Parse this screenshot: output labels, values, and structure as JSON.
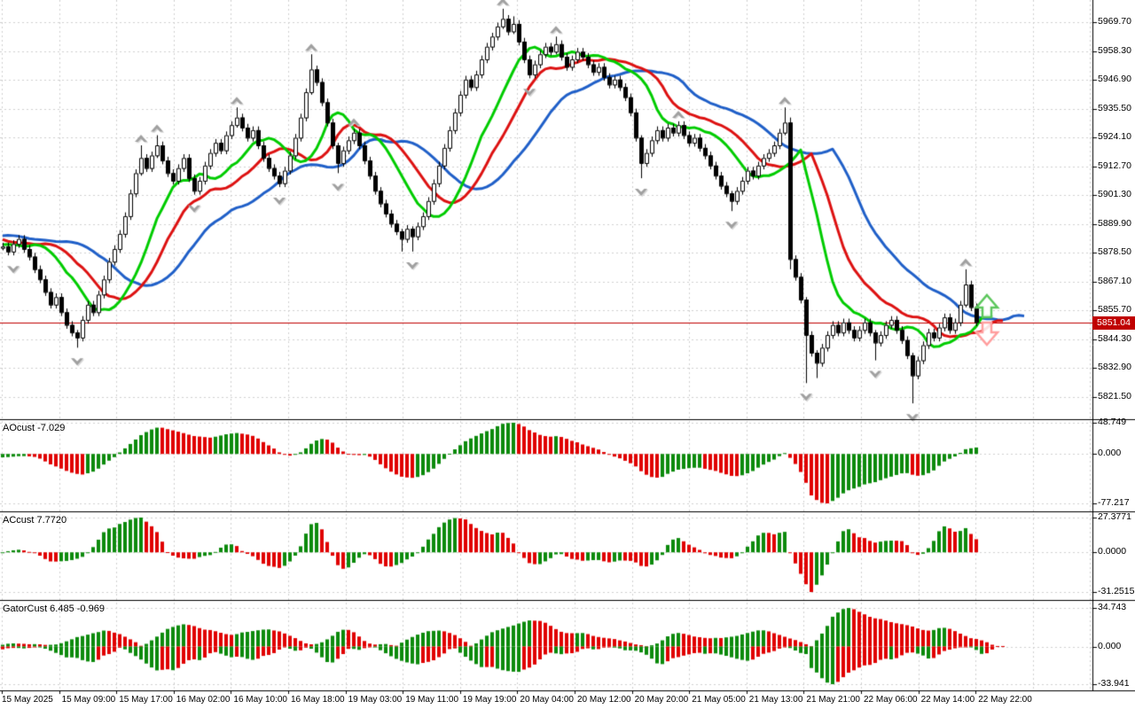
{
  "window": {
    "kind": "trading-terminal-chart",
    "timeframe": "H1"
  },
  "chart_data": {
    "type": "candlestick_with_indicators",
    "x_axis": {
      "labels": [
        "15 May 2025",
        "15 May 09:00",
        "15 May 17:00",
        "16 May 02:00",
        "16 May 10:00",
        "16 May 18:00",
        "19 May 03:00",
        "19 May 11:00",
        "19 May 19:00",
        "20 May 04:00",
        "20 May 12:00",
        "20 May 20:00",
        "21 May 05:00",
        "21 May 13:00",
        "21 May 21:00",
        "22 May 06:00",
        "22 May 14:00",
        "22 May 22:00"
      ]
    },
    "main_chart": {
      "y_axis_labels": [
        "5969.70",
        "5958.30",
        "5946.90",
        "5935.50",
        "5924.10",
        "5912.70",
        "5901.30",
        "5889.90",
        "5878.50",
        "5867.10",
        "5855.70",
        "5844.30",
        "5832.90",
        "5821.50"
      ],
      "y_axis_step": 11.4,
      "current_price": "5851.04",
      "closes_prehistory": [
        5890,
        5892,
        5895,
        5893,
        5890,
        5888,
        5885,
        5883,
        5886,
        5889,
        5891,
        5894,
        5896,
        5893,
        5889,
        5886,
        5883,
        5880,
        5878,
        5881,
        5884,
        5887,
        5890,
        5888,
        5885,
        5882,
        5879,
        5877,
        5880,
        5883,
        5886,
        5889,
        5887,
        5884,
        5882,
        5880,
        5878,
        5880,
        5882,
        5881
      ],
      "closes": [
        5881,
        5879,
        5882,
        5884,
        5880,
        5877,
        5872,
        5868,
        5863,
        5858,
        5861,
        5855,
        5850,
        5847,
        5845,
        5852,
        5858,
        5855,
        5862,
        5868,
        5875,
        5880,
        5886,
        5893,
        5902,
        5910,
        5916,
        5912,
        5917,
        5921,
        5915,
        5910,
        5907,
        5912,
        5916,
        5908,
        5903,
        5907,
        5913,
        5918,
        5922,
        5919,
        5925,
        5929,
        5932,
        5928,
        5924,
        5927,
        5921,
        5916,
        5912,
        5909,
        5906,
        5911,
        5917,
        5924,
        5932,
        5942,
        5951,
        5946,
        5938,
        5930,
        5921,
        5914,
        5919,
        5923,
        5926,
        5921,
        5915,
        5909,
        5903,
        5898,
        5894,
        5890,
        5887,
        5884,
        5888,
        5885,
        5889,
        5893,
        5899,
        5906,
        5913,
        5920,
        5927,
        5934,
        5941,
        5947,
        5944,
        5949,
        5955,
        5960,
        5964,
        5968,
        5971,
        5966,
        5969,
        5962,
        5955,
        5949,
        5953,
        5957,
        5960,
        5958,
        5961,
        5956,
        5952,
        5955,
        5958,
        5956,
        5953,
        5950,
        5952,
        5948,
        5945,
        5947,
        5944,
        5940,
        5934,
        5924,
        5914,
        5918,
        5923,
        5927,
        5924,
        5928,
        5926,
        5929,
        5925,
        5922,
        5924,
        5920,
        5917,
        5913,
        5909,
        5905,
        5902,
        5899,
        5903,
        5907,
        5911,
        5909,
        5913,
        5916,
        5918,
        5921,
        5926,
        5930,
        5876,
        5869,
        5860,
        5846,
        5839,
        5835,
        5841,
        5846,
        5850,
        5847,
        5851,
        5848,
        5845,
        5848,
        5851,
        5847,
        5843,
        5846,
        5850,
        5852,
        5848,
        5844,
        5838,
        5830,
        5836,
        5842,
        5847,
        5845,
        5849,
        5853,
        5848,
        5851,
        5858,
        5866,
        5857,
        5851.04
      ],
      "wick_overrides": {
        "14": [
          1,
          4
        ],
        "26": [
          5,
          1
        ],
        "29": [
          4,
          1
        ],
        "44": [
          4,
          1
        ],
        "58": [
          6,
          1
        ],
        "63": [
          1,
          4
        ],
        "75": [
          1,
          5
        ],
        "77": [
          1,
          6
        ],
        "94": [
          4,
          1
        ],
        "96": [
          3,
          1
        ],
        "104": [
          3,
          1
        ],
        "120": [
          1,
          6
        ],
        "137": [
          1,
          4
        ],
        "147": [
          6,
          1
        ],
        "148": [
          2,
          4
        ],
        "151": [
          1,
          19
        ],
        "153": [
          1,
          6
        ],
        "164": [
          1,
          7
        ],
        "171": [
          1,
          11
        ],
        "181": [
          6,
          1
        ]
      },
      "fractals_up": [
        26,
        29,
        44,
        58,
        66,
        94,
        104,
        127,
        147,
        181
      ],
      "fractals_down": [
        2,
        14,
        36,
        52,
        63,
        77,
        99,
        120,
        137,
        151,
        164,
        171
      ],
      "alligator": {
        "lips": {
          "period": 5,
          "shift": 3,
          "color": "#00cc00"
        },
        "teeth": {
          "period": 8,
          "shift": 5,
          "color": "#dd1111"
        },
        "jaw": {
          "period": 13,
          "shift": 9,
          "color": "#1f5fc8"
        }
      },
      "signal_arrows": {
        "up_color": "#5cc75c",
        "down_color": "#ff9e9e"
      }
    },
    "indicator_panels": [
      {
        "id": "ao",
        "label": "AOcust -7.029",
        "max": 48.749,
        "min": -77.217,
        "axis_labels": [
          "48.749",
          "0.000",
          "-77.217"
        ]
      },
      {
        "id": "ac",
        "label": "ACcust 7.7720",
        "max": 27.3771,
        "min": -31.2515,
        "axis_labels": [
          "27.3771",
          "0.0000",
          "-31.2515"
        ]
      },
      {
        "id": "gator",
        "label": "GatorCust 6.485 -0.969",
        "max": 34.743,
        "min": -33.941,
        "axis_labels": [
          "34.743",
          "0.000",
          "-33.941"
        ]
      }
    ],
    "colors": {
      "background": "#ffffff",
      "text": "#000000",
      "grid": "#d0d0d0",
      "separator": "#000000",
      "bull_candle": "#ffffff",
      "bear_candle": "#000000",
      "candle_border": "#000000",
      "histogram_up": "#0c8a0c",
      "histogram_down": "#e00000",
      "price_line": "#c00000",
      "badge_bg": "#c00000",
      "badge_text": "#ffffff",
      "fractal": "#a0a0a0",
      "fractal_shadow": "#d8d8d8"
    }
  }
}
